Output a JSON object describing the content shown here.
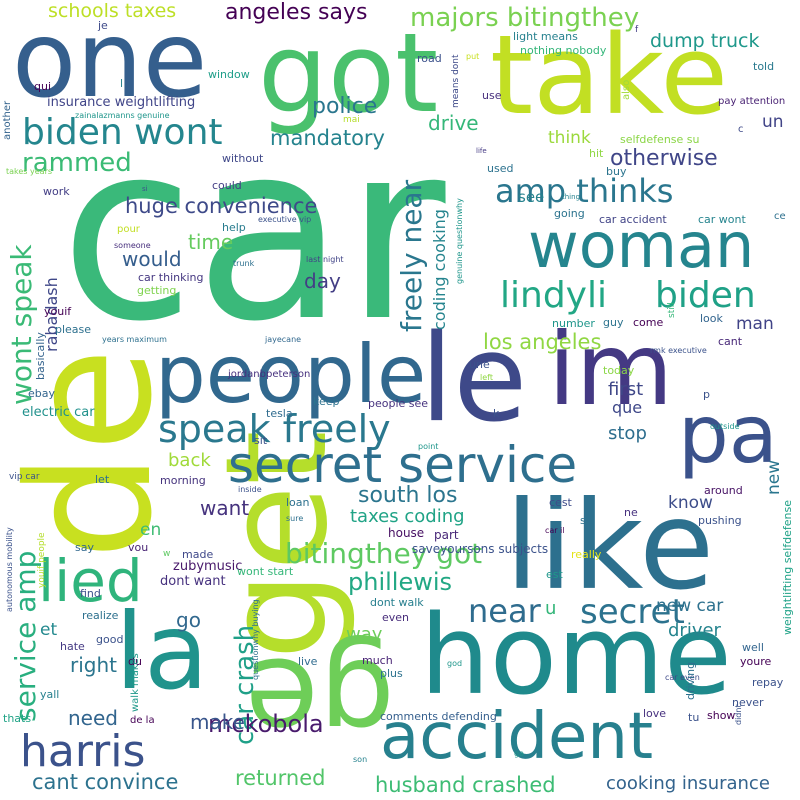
{
  "words": [
    {
      "text": "car",
      "color": "#3ab97a",
      "weight": 100
    },
    {
      "text": "de",
      "color": "#c8e020",
      "weight": 70
    },
    {
      "text": "like",
      "color": "#2d708e",
      "weight": 60
    },
    {
      "text": "home",
      "color": "#1f8a8c",
      "weight": 58
    },
    {
      "text": "get",
      "color": "#b5de2b",
      "weight": 56
    },
    {
      "text": "le",
      "color": "#3e4989",
      "weight": 55
    },
    {
      "text": "take",
      "color": "#c2df23",
      "weight": 50
    },
    {
      "text": "got",
      "color": "#4ac16d",
      "weight": 50
    },
    {
      "text": "one",
      "color": "#355f8d",
      "weight": 50
    },
    {
      "text": "la",
      "color": "#20938c",
      "weight": 48
    },
    {
      "text": "ge",
      "color": "#6ece58",
      "weight": 48
    },
    {
      "text": "im",
      "color": "#443983",
      "weight": 45
    },
    {
      "text": "pa",
      "color": "#3b528b",
      "weight": 42
    },
    {
      "text": "people",
      "color": "#31688e",
      "weight": 40
    },
    {
      "text": "woman",
      "color": "#25858e",
      "weight": 38
    },
    {
      "text": "accident",
      "color": "#27808e",
      "weight": 37
    },
    {
      "text": "secret service",
      "color": "#2e6f8e",
      "weight": 34
    },
    {
      "text": "lied",
      "color": "#2fb47c",
      "weight": 34
    },
    {
      "text": "harris",
      "color": "#3b528b",
      "weight": 30
    },
    {
      "text": "speak freely",
      "color": "#2a788e",
      "weight": 28
    },
    {
      "text": "biden wont",
      "color": "#24868e",
      "weight": 26
    },
    {
      "text": "lindyli",
      "color": "#22a785",
      "weight": 26
    },
    {
      "text": "biden",
      "color": "#1fa187",
      "weight": 26
    },
    {
      "text": "near",
      "color": "#2f6c8e",
      "weight": 26
    },
    {
      "text": "secret",
      "color": "#2c728e",
      "weight": 26
    },
    {
      "text": "amp thinks",
      "color": "#2a768e",
      "weight": 24
    },
    {
      "text": "bitingthey got",
      "color": "#5ec962",
      "weight": 22
    },
    {
      "text": "service amp",
      "color": "#29af7f",
      "weight": 22
    },
    {
      "text": "wont speak",
      "color": "#3aba76",
      "weight": 22
    },
    {
      "text": "freely near",
      "color": "#2a778e",
      "weight": 22
    },
    {
      "text": "phillewis",
      "color": "#22a884",
      "weight": 20
    },
    {
      "text": "car crash",
      "color": "#1fa088",
      "weight": 20
    },
    {
      "text": "majors bitingthey",
      "color": "#7ad151",
      "weight": 20
    },
    {
      "text": "rammed",
      "color": "#3bbb75",
      "weight": 20
    },
    {
      "text": "mckobola",
      "color": "#481a6c",
      "weight": 20
    },
    {
      "text": "south los",
      "color": "#2b758e",
      "weight": 19
    },
    {
      "text": "angeles says",
      "color": "#440154",
      "weight": 18
    },
    {
      "text": "huge convenience",
      "color": "#3e4a89",
      "weight": 18
    },
    {
      "text": "otherwise",
      "color": "#404688",
      "weight": 18
    },
    {
      "text": "mandatory",
      "color": "#25838e",
      "weight": 18
    },
    {
      "text": "los angeles",
      "color": "#90d743",
      "weight": 18
    },
    {
      "text": "cant convince",
      "color": "#2c728e",
      "weight": 18
    },
    {
      "text": "returned",
      "color": "#52c569",
      "weight": 18
    },
    {
      "text": "husband crashed",
      "color": "#3dbc74",
      "weight": 18
    },
    {
      "text": "cooking insurance",
      "color": "#33638d",
      "weight": 17
    },
    {
      "text": "schools taxes",
      "color": "#bddf26",
      "weight": 17
    },
    {
      "text": "dump truck",
      "color": "#1f988b",
      "weight": 17
    },
    {
      "text": "police",
      "color": "#2a768e",
      "weight": 18
    },
    {
      "text": "drive",
      "color": "#35b779",
      "weight": 17
    },
    {
      "text": "time",
      "color": "#65cb5e",
      "weight": 17
    },
    {
      "text": "would",
      "color": "#355e8d",
      "weight": 17
    },
    {
      "text": "day",
      "color": "#433e85",
      "weight": 17
    },
    {
      "text": "want",
      "color": "#46337e",
      "weight": 17
    },
    {
      "text": "back",
      "color": "#a0da39",
      "weight": 16
    },
    {
      "text": "taxes coding",
      "color": "#20a386",
      "weight": 16
    },
    {
      "text": "first",
      "color": "#3f4788",
      "weight": 16
    },
    {
      "text": "que",
      "color": "#3f4889",
      "weight": 15
    },
    {
      "text": "stop",
      "color": "#2e6e8e",
      "weight": 16
    },
    {
      "text": "know",
      "color": "#3d4d8a",
      "weight": 15
    },
    {
      "text": "new",
      "color": "#2a768e",
      "weight": 15
    },
    {
      "text": "man",
      "color": "#404387",
      "weight": 15
    },
    {
      "text": "un",
      "color": "#414487",
      "weight": 15
    },
    {
      "text": "see",
      "color": "#26828e",
      "weight": 15
    },
    {
      "text": "think",
      "color": "#9bd93c",
      "weight": 15
    },
    {
      "text": "right",
      "color": "#2b758e",
      "weight": 16
    },
    {
      "text": "need",
      "color": "#32658e",
      "weight": 16
    },
    {
      "text": "make",
      "color": "#39568c",
      "weight": 16
    },
    {
      "text": "go",
      "color": "#31688e",
      "weight": 16
    },
    {
      "text": "way",
      "color": "#6ccd5a",
      "weight": 15
    },
    {
      "text": "driver",
      "color": "#25848e",
      "weight": 15
    },
    {
      "text": "new car",
      "color": "#2d718e",
      "weight": 15
    },
    {
      "text": "en",
      "color": "#3fbc73",
      "weight": 14
    },
    {
      "text": "et",
      "color": "#23898e",
      "weight": 14
    },
    {
      "text": "coding cooking",
      "color": "#25848e",
      "weight": 14
    },
    {
      "text": "rabadash",
      "color": "#3f4788",
      "weight": 13
    },
    {
      "text": "u",
      "color": "#34b679",
      "weight": 14
    },
    {
      "text": "zubymusic",
      "color": "#48186a",
      "weight": 11
    },
    {
      "text": "dont want",
      "color": "#46317e",
      "weight": 11
    },
    {
      "text": "saveyoursons subjects",
      "color": "#3b528b",
      "weight": 11
    },
    {
      "text": "weightlifting selfdefense",
      "color": "#1fa287",
      "weight": 10
    },
    {
      "text": "insurance weightlifting",
      "color": "#404588",
      "weight": 10
    },
    {
      "text": "electric car",
      "color": "#21918c",
      "weight": 10
    },
    {
      "text": "people see",
      "color": "#46327e",
      "weight": 9
    },
    {
      "text": "jordanbpeterson",
      "color": "#46307e",
      "weight": 9
    },
    {
      "text": "tesla",
      "color": "#2f6b8e",
      "weight": 9
    },
    {
      "text": "loan",
      "color": "#2d708e",
      "weight": 9
    },
    {
      "text": "house",
      "color": "#471063",
      "weight": 9
    },
    {
      "text": "part",
      "color": "#482777",
      "weight": 9
    },
    {
      "text": "comments defending",
      "color": "#355f8d",
      "weight": 9
    },
    {
      "text": "dont walk",
      "color": "#277f8e",
      "weight": 9
    },
    {
      "text": "even",
      "color": "#472c7a",
      "weight": 9
    },
    {
      "text": "much",
      "color": "#482374",
      "weight": 9
    },
    {
      "text": "plus",
      "color": "#2c728e",
      "weight": 9
    },
    {
      "text": "live",
      "color": "#2f6b8e",
      "weight": 9
    },
    {
      "text": "car thinking",
      "color": "#453781",
      "weight": 9
    },
    {
      "text": "getting",
      "color": "#7fd34e",
      "weight": 9
    },
    {
      "text": "help",
      "color": "#287c8e",
      "weight": 9
    },
    {
      "text": "pour",
      "color": "#c2df23",
      "weight": 9
    },
    {
      "text": "could",
      "color": "#433e85",
      "weight": 9
    },
    {
      "text": "without",
      "color": "#3f4788",
      "weight": 9
    },
    {
      "text": "window",
      "color": "#1f9e89",
      "weight": 9
    },
    {
      "text": "selfdefense su",
      "color": "#8bd646",
      "weight": 9
    },
    {
      "text": "car accident",
      "color": "#414487",
      "weight": 9
    },
    {
      "text": "car wont",
      "color": "#25848e",
      "weight": 9
    },
    {
      "text": "buy",
      "color": "#2b748e",
      "weight": 9
    },
    {
      "text": "going",
      "color": "#2c738e",
      "weight": 9
    },
    {
      "text": "used",
      "color": "#2c728e",
      "weight": 9
    },
    {
      "text": "hit",
      "color": "#8fd744",
      "weight": 9
    },
    {
      "text": "nothing nobody",
      "color": "#34b679",
      "weight": 9
    },
    {
      "text": "light means",
      "color": "#26818e",
      "weight": 9
    },
    {
      "text": "road",
      "color": "#3b518b",
      "weight": 9
    },
    {
      "text": "use",
      "color": "#472f7d",
      "weight": 9
    },
    {
      "text": "told",
      "color": "#29798e",
      "weight": 9
    },
    {
      "text": "pay attention",
      "color": "#461f71",
      "weight": 8
    },
    {
      "text": "look",
      "color": "#32648e",
      "weight": 9
    },
    {
      "text": "cant",
      "color": "#482878",
      "weight": 9
    },
    {
      "text": "come",
      "color": "#440154",
      "weight": 9
    },
    {
      "text": "guy",
      "color": "#2c738e",
      "weight": 9
    },
    {
      "text": "number",
      "color": "#1f968b",
      "weight": 9
    },
    {
      "text": "today",
      "color": "#8bd646",
      "weight": 9
    },
    {
      "text": "une",
      "color": "#3b518b",
      "weight": 9
    },
    {
      "text": "around",
      "color": "#471365",
      "weight": 9
    },
    {
      "text": "pushing",
      "color": "#3b528b",
      "weight": 9
    },
    {
      "text": "really",
      "color": "#e4e419",
      "weight": 9
    },
    {
      "text": "est",
      "color": "#1f988b",
      "weight": 9
    },
    {
      "text": "cest",
      "color": "#3e4c8a",
      "weight": 9
    },
    {
      "text": "se",
      "color": "#2d708e",
      "weight": 9
    },
    {
      "text": "ne",
      "color": "#46307e",
      "weight": 9
    },
    {
      "text": "wont start",
      "color": "#35b779",
      "weight": 9
    },
    {
      "text": "realize",
      "color": "#2d708e",
      "weight": 9
    },
    {
      "text": "good",
      "color": "#3b528b",
      "weight": 9
    },
    {
      "text": "hate",
      "color": "#443983",
      "weight": 9
    },
    {
      "text": "du",
      "color": "#440154",
      "weight": 9
    },
    {
      "text": "walk makes",
      "color": "#1f998a",
      "weight": 8
    },
    {
      "text": "yall",
      "color": "#27808e",
      "weight": 9
    },
    {
      "text": "thats",
      "color": "#20a386",
      "weight": 9
    },
    {
      "text": "de la",
      "color": "#440154",
      "weight": 8
    },
    {
      "text": "find",
      "color": "#3b518b",
      "weight": 9
    },
    {
      "text": "say",
      "color": "#31688e",
      "weight": 9
    },
    {
      "text": "vou",
      "color": "#482374",
      "weight": 9
    },
    {
      "text": "made",
      "color": "#3f4889",
      "weight": 9
    },
    {
      "text": "let",
      "color": "#2d708e",
      "weight": 9
    },
    {
      "text": "morning",
      "color": "#45337d",
      "weight": 9
    },
    {
      "text": "sit",
      "color": "#3b528b",
      "weight": 9
    },
    {
      "text": "keep",
      "color": "#2c728e",
      "weight": 9
    },
    {
      "text": "please",
      "color": "#2d708e",
      "weight": 9
    },
    {
      "text": "youif",
      "color": "#440154",
      "weight": 9
    },
    {
      "text": "basically",
      "color": "#33638d",
      "weight": 9
    },
    {
      "text": "ebay",
      "color": "#32658e",
      "weight": 9
    },
    {
      "text": "work",
      "color": "#433e85",
      "weight": 9
    },
    {
      "text": "qui",
      "color": "#440154",
      "weight": 9
    },
    {
      "text": "je",
      "color": "#3e4a89",
      "weight": 9
    },
    {
      "text": "l",
      "color": "#26828e",
      "weight": 9
    },
    {
      "text": "another",
      "color": "#33638d",
      "weight": 8
    },
    {
      "text": "takes years",
      "color": "#7ad151",
      "weight": 7
    },
    {
      "text": "zainalazmanns genuine",
      "color": "#1f968b",
      "weight": 7
    },
    {
      "text": "years maximum",
      "color": "#2d708e",
      "weight": 7
    },
    {
      "text": "jayecane",
      "color": "#31688e",
      "weight": 7
    },
    {
      "text": "executive vip",
      "color": "#3b528b",
      "weight": 6
    },
    {
      "text": "last night",
      "color": "#414487",
      "weight": 7
    },
    {
      "text": "trunk",
      "color": "#2d708e",
      "weight": 6
    },
    {
      "text": "someone",
      "color": "#472f7d",
      "weight": 6
    },
    {
      "text": "si",
      "color": "#3b528b",
      "weight": 6
    },
    {
      "text": "mai",
      "color": "#b5de2b",
      "weight": 7
    },
    {
      "text": "thing",
      "color": "#26828e",
      "weight": 6
    },
    {
      "text": "life",
      "color": "#443983",
      "weight": 6
    },
    {
      "text": "means dont",
      "color": "#3e4a89",
      "weight": 7
    },
    {
      "text": "also",
      "color": "#9fda3a",
      "weight": 8
    },
    {
      "text": "f",
      "color": "#433e85",
      "weight": 7
    },
    {
      "text": "put",
      "color": "#c8e020",
      "weight": 6
    },
    {
      "text": "c",
      "color": "#3e4a89",
      "weight": 8
    },
    {
      "text": "ce",
      "color": "#2d708e",
      "weight": 8
    },
    {
      "text": "still",
      "color": "#35b779",
      "weight": 7
    },
    {
      "text": "rmk executive",
      "color": "#3b528b",
      "weight": 7
    },
    {
      "text": "left",
      "color": "#90d743",
      "weight": 6
    },
    {
      "text": "genuine questionwhy",
      "color": "#1f968b",
      "weight": 6
    },
    {
      "text": "p",
      "color": "#3b528b",
      "weight": 9
    },
    {
      "text": "outside",
      "color": "#1f968b",
      "weight": 6
    },
    {
      "text": "k",
      "color": "#3b528b",
      "weight": 9
    },
    {
      "text": "point",
      "color": "#1f968b",
      "weight": 6
    },
    {
      "text": "inside",
      "color": "#3b528b",
      "weight": 6
    },
    {
      "text": "sure",
      "color": "#2d708e",
      "weight": 6
    },
    {
      "text": "car il",
      "color": "#440154",
      "weight": 6
    },
    {
      "text": "vip car",
      "color": "#3b528b",
      "weight": 7
    },
    {
      "text": "youif people",
      "color": "#b5de2b",
      "weight": 7
    },
    {
      "text": "w",
      "color": "#5ec962",
      "weight": 7
    },
    {
      "text": "autonomous mobility",
      "color": "#3b528b",
      "weight": 6
    },
    {
      "text": "questionwhy buying",
      "color": "#2d708e",
      "weight": 6
    },
    {
      "text": "god",
      "color": "#1f968b",
      "weight": 6
    },
    {
      "text": "car even",
      "color": "#3e4a89",
      "weight": 6
    },
    {
      "text": "ga",
      "color": "#1f968b",
      "weight": 6
    },
    {
      "text": "son",
      "color": "#26828e",
      "weight": 6
    },
    {
      "text": "didnt",
      "color": "#3b528b",
      "weight": 6
    },
    {
      "text": "driving",
      "color": "#2d708e",
      "weight": 9
    },
    {
      "text": "well",
      "color": "#32658e",
      "weight": 9
    },
    {
      "text": "youre",
      "color": "#440154",
      "weight": 9
    },
    {
      "text": "repay",
      "color": "#3b528b",
      "weight": 9
    },
    {
      "text": "never",
      "color": "#3b528b",
      "weight": 9
    },
    {
      "text": "love",
      "color": "#46307e",
      "weight": 9
    },
    {
      "text": "tu",
      "color": "#3b528b",
      "weight": 9
    },
    {
      "text": "show",
      "color": "#440154",
      "weight": 9
    }
  ]
}
